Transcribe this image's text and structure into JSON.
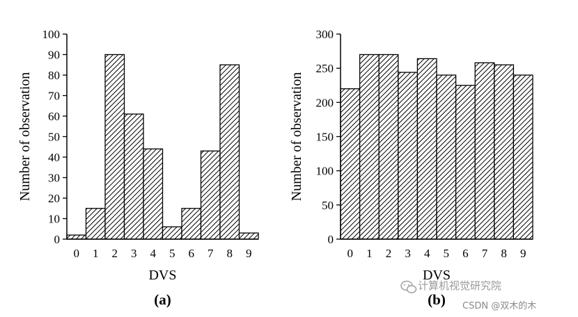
{
  "chart_data": [
    {
      "type": "bar",
      "panel_label": "(a)",
      "xlabel": "DVS",
      "ylabel": "Number of observation",
      "categories": [
        "0",
        "1",
        "2",
        "3",
        "4",
        "5",
        "6",
        "7",
        "8",
        "9"
      ],
      "values": [
        2,
        15,
        90,
        61,
        44,
        6,
        15,
        43,
        85,
        3
      ],
      "ylim": [
        0,
        100
      ],
      "yticks": [
        0,
        10,
        20,
        30,
        40,
        50,
        60,
        70,
        80,
        90,
        100
      ],
      "bar_fill": "hatched",
      "grid": false
    },
    {
      "type": "bar",
      "panel_label": "(b)",
      "xlabel": "DVS",
      "ylabel": "Number of observation",
      "categories": [
        "0",
        "1",
        "2",
        "3",
        "4",
        "5",
        "6",
        "7",
        "8",
        "9"
      ],
      "values": [
        220,
        270,
        270,
        244,
        264,
        240,
        225,
        258,
        255,
        240
      ],
      "ylim": [
        0,
        300
      ],
      "yticks": [
        0,
        50,
        100,
        150,
        200,
        250,
        300
      ],
      "bar_fill": "hatched",
      "grid": false
    }
  ],
  "watermark": {
    "wechat_text": "计算机视觉研究院",
    "csdn_text": "CSDN @双木的木"
  },
  "colors": {
    "ink": "#000000",
    "background": "#ffffff",
    "watermark": "#9a9a9a"
  }
}
